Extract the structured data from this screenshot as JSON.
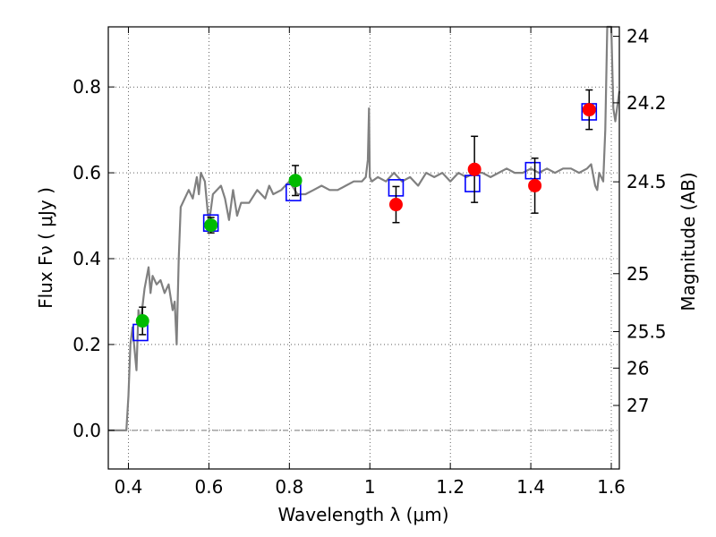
{
  "chart_data": {
    "type": "scatter",
    "xlabel": "Wavelength  λ (μm)",
    "ylabel": "Flux  Fν  ( μJy )",
    "ylabel_right": "Magnitude (AB)",
    "xlim": [
      0.35,
      1.62
    ],
    "ylim": [
      -0.09,
      0.94
    ],
    "x_ticks": [
      0.4,
      0.6,
      0.8,
      1.0,
      1.2,
      1.4,
      1.6
    ],
    "x_tick_labels": [
      "0.4",
      "0.6",
      "0.8",
      "1",
      "1.2",
      "1.4",
      "1.6"
    ],
    "y_ticks": [
      0.0,
      0.2,
      0.4,
      0.6,
      0.8
    ],
    "y_tick_labels": [
      "0.0",
      "0.2",
      "0.4",
      "0.6",
      "0.8"
    ],
    "right_ticks": [
      {
        "label": "24",
        "flux": 0.918
      },
      {
        "label": "24.2",
        "flux": 0.763
      },
      {
        "label": "24.5",
        "flux": 0.579
      },
      {
        "label": "25",
        "flux": 0.365
      },
      {
        "label": "25.5",
        "flux": 0.23
      },
      {
        "label": "26",
        "flux": 0.145
      },
      {
        "label": "27",
        "flux": 0.058
      }
    ],
    "grid": true,
    "zero_line": true,
    "colors": {
      "model": "#808080",
      "green_points": "#00bb00",
      "red_points": "#ff0000",
      "model_boxes": "#0000ff",
      "errorbars": "#000000"
    },
    "model_spectrum": {
      "x": [
        0.35,
        0.38,
        0.395,
        0.4,
        0.405,
        0.41,
        0.42,
        0.425,
        0.43,
        0.44,
        0.45,
        0.455,
        0.46,
        0.47,
        0.48,
        0.49,
        0.5,
        0.51,
        0.515,
        0.52,
        0.525,
        0.53,
        0.54,
        0.55,
        0.56,
        0.57,
        0.575,
        0.58,
        0.59,
        0.6,
        0.61,
        0.62,
        0.63,
        0.64,
        0.65,
        0.66,
        0.67,
        0.68,
        0.7,
        0.72,
        0.74,
        0.75,
        0.76,
        0.78,
        0.8,
        0.82,
        0.84,
        0.86,
        0.88,
        0.9,
        0.92,
        0.94,
        0.96,
        0.98,
        0.99,
        0.995,
        0.998,
        1.0,
        1.005,
        1.02,
        1.04,
        1.06,
        1.08,
        1.1,
        1.12,
        1.14,
        1.16,
        1.18,
        1.2,
        1.22,
        1.24,
        1.26,
        1.28,
        1.3,
        1.32,
        1.34,
        1.36,
        1.38,
        1.4,
        1.42,
        1.44,
        1.46,
        1.48,
        1.5,
        1.52,
        1.54,
        1.55,
        1.56,
        1.565,
        1.57,
        1.58,
        1.585,
        1.59,
        1.595,
        1.6,
        1.605,
        1.61,
        1.62
      ],
      "y": [
        0.0,
        0.0,
        0.0,
        0.08,
        0.2,
        0.24,
        0.14,
        0.28,
        0.25,
        0.33,
        0.38,
        0.32,
        0.36,
        0.34,
        0.35,
        0.32,
        0.34,
        0.28,
        0.3,
        0.2,
        0.4,
        0.52,
        0.54,
        0.56,
        0.54,
        0.59,
        0.55,
        0.6,
        0.58,
        0.48,
        0.55,
        0.56,
        0.57,
        0.54,
        0.49,
        0.56,
        0.5,
        0.53,
        0.53,
        0.56,
        0.54,
        0.57,
        0.55,
        0.56,
        0.58,
        0.55,
        0.55,
        0.56,
        0.57,
        0.56,
        0.56,
        0.57,
        0.58,
        0.58,
        0.59,
        0.63,
        0.75,
        0.59,
        0.58,
        0.59,
        0.58,
        0.6,
        0.58,
        0.59,
        0.57,
        0.6,
        0.59,
        0.6,
        0.58,
        0.6,
        0.59,
        0.6,
        0.6,
        0.59,
        0.6,
        0.61,
        0.6,
        0.6,
        0.61,
        0.6,
        0.61,
        0.6,
        0.61,
        0.61,
        0.6,
        0.61,
        0.62,
        0.57,
        0.56,
        0.6,
        0.58,
        0.7,
        0.95,
        0.95,
        0.95,
        0.75,
        0.72,
        0.79
      ]
    },
    "series": [
      {
        "color": "green",
        "points": [
          {
            "x": 0.435,
            "y": 0.255,
            "err": 0.032
          },
          {
            "x": 0.605,
            "y": 0.478,
            "err": 0.018
          },
          {
            "x": 0.815,
            "y": 0.582,
            "err": 0.035
          }
        ]
      },
      {
        "color": "red",
        "points": [
          {
            "x": 1.065,
            "y": 0.526,
            "err": 0.042
          },
          {
            "x": 1.26,
            "y": 0.608,
            "err": 0.077
          },
          {
            "x": 1.41,
            "y": 0.57,
            "err": 0.064
          },
          {
            "x": 1.545,
            "y": 0.747,
            "err": 0.046
          }
        ]
      }
    ],
    "model_boxes": [
      {
        "x": 0.43,
        "y": 0.228
      },
      {
        "x": 0.605,
        "y": 0.483
      },
      {
        "x": 0.81,
        "y": 0.554
      },
      {
        "x": 1.065,
        "y": 0.565
      },
      {
        "x": 1.255,
        "y": 0.575
      },
      {
        "x": 1.405,
        "y": 0.605
      },
      {
        "x": 1.545,
        "y": 0.742
      }
    ]
  }
}
